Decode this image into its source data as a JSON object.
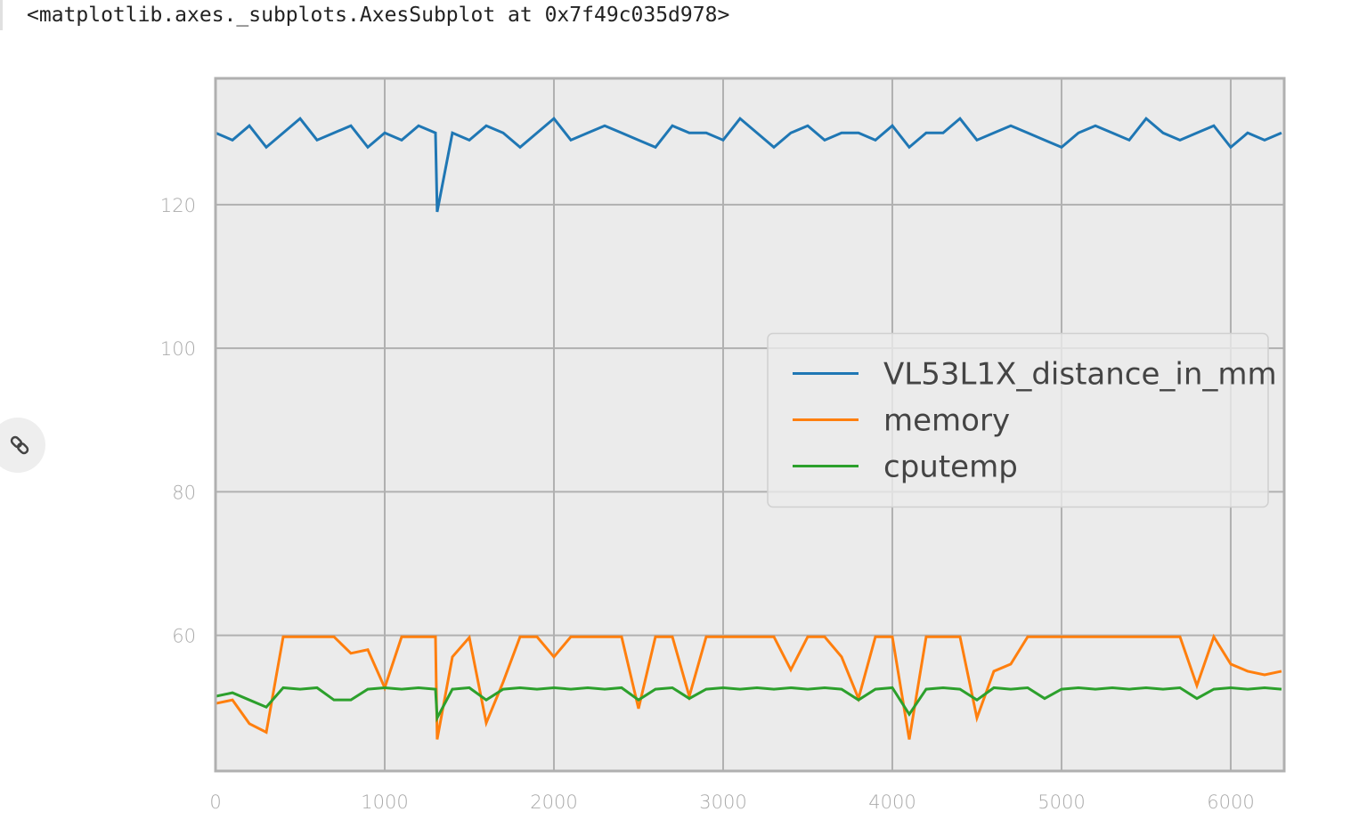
{
  "output_text": "<matplotlib.axes._subplots.AxesSubplot at 0x7f49c035d978>",
  "chart_data": {
    "type": "line",
    "x": [
      0,
      100,
      200,
      300,
      400,
      500,
      600,
      700,
      800,
      900,
      1000,
      1100,
      1200,
      1300,
      1310,
      1400,
      1500,
      1600,
      1700,
      1800,
      1900,
      2000,
      2100,
      2200,
      2300,
      2400,
      2500,
      2600,
      2700,
      2800,
      2900,
      3000,
      3100,
      3200,
      3300,
      3400,
      3500,
      3600,
      3700,
      3800,
      3900,
      4000,
      4100,
      4200,
      4300,
      4400,
      4500,
      4600,
      4700,
      4800,
      4900,
      5000,
      5100,
      5200,
      5300,
      5400,
      5500,
      5600,
      5700,
      5800,
      5900,
      6000,
      6100,
      6200,
      6300
    ],
    "series": [
      {
        "name": "VL53L1X_distance_in_mm",
        "color": "#1f77b4",
        "values": [
          130,
          129,
          131,
          128,
          130,
          132,
          129,
          130,
          131,
          128,
          130,
          129,
          131,
          130,
          119,
          130,
          129,
          131,
          130,
          128,
          130,
          132,
          129,
          130,
          131,
          130,
          129,
          128,
          131,
          130,
          130,
          129,
          132,
          130,
          128,
          130,
          131,
          129,
          130,
          130,
          129,
          131,
          128,
          130,
          130,
          132,
          129,
          130,
          131,
          130,
          129,
          128,
          130,
          131,
          130,
          129,
          132,
          130,
          129,
          130,
          131,
          128,
          130,
          129,
          130
        ]
      },
      {
        "name": "memory",
        "color": "#ff7f0e",
        "values": [
          50.5,
          51,
          47.7,
          46.5,
          59.8,
          59.8,
          59.8,
          59.8,
          57.5,
          58,
          52.7,
          59.8,
          59.8,
          59.8,
          45.5,
          57,
          59.7,
          47.8,
          53.5,
          59.8,
          59.8,
          57,
          59.8,
          59.8,
          59.8,
          59.8,
          49.8,
          59.8,
          59.8,
          51.5,
          59.8,
          59.8,
          59.8,
          59.8,
          59.8,
          55.2,
          59.8,
          59.8,
          57,
          51.2,
          59.8,
          59.8,
          45.5,
          59.8,
          59.8,
          59.8,
          48.5,
          55,
          56,
          59.8,
          59.8,
          59.8,
          59.8,
          59.8,
          59.8,
          59.8,
          59.8,
          59.8,
          59.8,
          53,
          59.8,
          56,
          55,
          54.5,
          55
        ]
      },
      {
        "name": "cputemp",
        "color": "#2ca02c",
        "values": [
          51.5,
          52,
          51,
          50,
          52.7,
          52.5,
          52.7,
          51,
          51,
          52.5,
          52.7,
          52.5,
          52.7,
          52.5,
          48.5,
          52.5,
          52.7,
          51,
          52.5,
          52.7,
          52.5,
          52.7,
          52.5,
          52.7,
          52.5,
          52.7,
          51,
          52.5,
          52.7,
          51.2,
          52.5,
          52.7,
          52.5,
          52.7,
          52.5,
          52.7,
          52.5,
          52.7,
          52.5,
          51,
          52.5,
          52.7,
          49,
          52.5,
          52.7,
          52.5,
          51,
          52.7,
          52.5,
          52.7,
          51.2,
          52.5,
          52.7,
          52.5,
          52.7,
          52.5,
          52.7,
          52.5,
          52.7,
          51.2,
          52.5,
          52.7,
          52.5,
          52.7,
          52.5
        ]
      }
    ],
    "xlim": [
      0,
      6316
    ],
    "ylim": [
      41.1,
      137.6
    ],
    "xticks": [
      0,
      1000,
      2000,
      3000,
      4000,
      5000,
      6000
    ],
    "yticks": [
      60,
      80,
      100,
      120
    ],
    "grid": true,
    "legend": "center right"
  }
}
